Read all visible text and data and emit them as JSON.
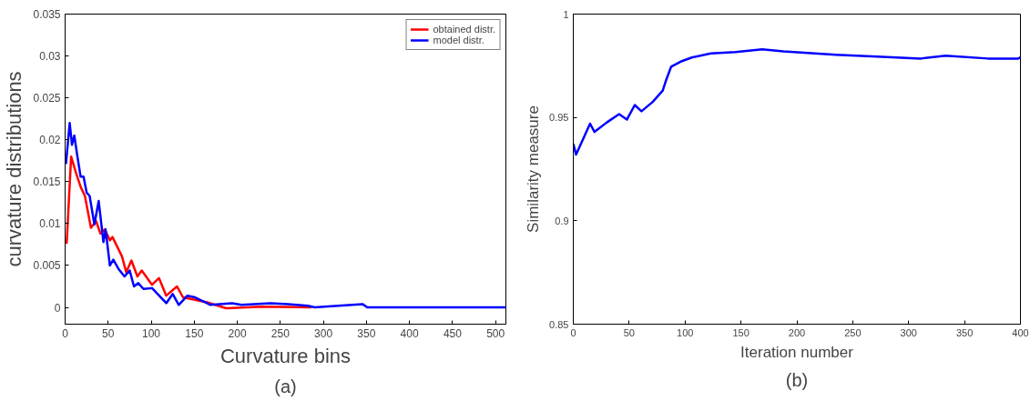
{
  "chart_data": [
    {
      "type": "line",
      "xlabel": "Curvature bins",
      "ylabel": "curvature distributions",
      "annotations": [
        "(a)"
      ],
      "xlim": [
        0,
        512
      ],
      "ylim": [
        -0.002,
        0.035
      ],
      "xticks": [
        0,
        50,
        100,
        150,
        200,
        250,
        300,
        350,
        400,
        450,
        500
      ],
      "yticks": [
        0,
        0.005,
        0.01,
        0.015,
        0.02,
        0.025,
        0.03,
        0.035
      ],
      "grid": false,
      "legend": "top right",
      "line_style": "solid",
      "marker": "none",
      "series": [
        {
          "name": "obtained distr.",
          "color": "#ff0000",
          "x": [
            1.8,
            7,
            12.5,
            18,
            23,
            30,
            36,
            41,
            46,
            52,
            55,
            66,
            71,
            77,
            84,
            89,
            101,
            109,
            117.5,
            130,
            137,
            165,
            187,
            230,
            286
          ],
          "values": [
            0.0076,
            0.018,
            0.0161,
            0.0144,
            0.0133,
            0.0095,
            0.0103,
            0.0088,
            0.0093,
            0.008,
            0.0084,
            0.0061,
            0.0042,
            0.0056,
            0.0037,
            0.0044,
            0.0027,
            0.0035,
            0.0014,
            0.0025,
            0.0012,
            0.0006,
            -0.0001,
            0.0001,
            0
          ]
        },
        {
          "name": "model distr.",
          "color": "#0000ff",
          "x": [
            1,
            5.3,
            8,
            10.7,
            14,
            18,
            21.4,
            25,
            28.5,
            34,
            39,
            44.5,
            47,
            52,
            56,
            62,
            69,
            75,
            80,
            85,
            91,
            101,
            117.5,
            125,
            132,
            142,
            151,
            169,
            194,
            205,
            238.6,
            259,
            282,
            290,
            345.4,
            351,
            512
          ],
          "values": [
            0.0171,
            0.022,
            0.0194,
            0.0205,
            0.0182,
            0.0156,
            0.0156,
            0.0137,
            0.0133,
            0.0099,
            0.0127,
            0.0078,
            0.0093,
            0.005,
            0.0057,
            0.0046,
            0.0037,
            0.0044,
            0.0025,
            0.0029,
            0.0022,
            0.0023,
            0.0005,
            0.0016,
            0.0003,
            0.0014,
            0.0012,
            0.0003,
            0.0005,
            0.0003,
            0.0005,
            0.0004,
            0.0002,
            0,
            0.0004,
            0,
            0
          ]
        }
      ]
    },
    {
      "type": "line",
      "xlabel": "Iteration number",
      "ylabel": "Similarity measure",
      "annotations": [
        "(b)"
      ],
      "xlim": [
        0,
        400
      ],
      "ylim": [
        0.85,
        1
      ],
      "xticks": [
        0,
        50,
        100,
        150,
        200,
        250,
        300,
        350,
        400
      ],
      "yticks": [
        0.85,
        0.9,
        0.95,
        1
      ],
      "grid": false,
      "legend": false,
      "line_style": "solid",
      "marker": "none",
      "series": [
        {
          "color": "#0000ff",
          "x": [
            0,
            2.5,
            15,
            19,
            30,
            41,
            48,
            55,
            61,
            71,
            80,
            83,
            87.5,
            96,
            106,
            123,
            145,
            169,
            188,
            235,
            272,
            311,
            333,
            371,
            398,
            400
          ],
          "values": [
            0.9373,
            0.932,
            0.947,
            0.943,
            0.9476,
            0.9516,
            0.949,
            0.956,
            0.953,
            0.9575,
            0.963,
            0.968,
            0.9745,
            0.977,
            0.979,
            0.981,
            0.9816,
            0.983,
            0.982,
            0.9803,
            0.9794,
            0.9785,
            0.9799,
            0.9785,
            0.9785,
            0.979
          ]
        }
      ]
    }
  ]
}
